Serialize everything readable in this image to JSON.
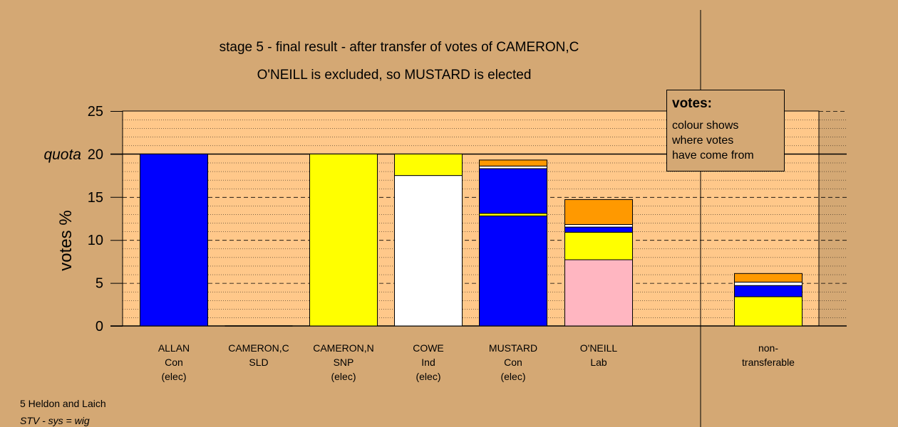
{
  "chart_data": {
    "type": "bar",
    "stacked": true,
    "title": "stage 5 - final result - after transfer of votes of CAMERON,C",
    "subtitle": "O'NEILL is excluded, so MUSTARD is elected",
    "ylabel": "votes %",
    "ylim": [
      0,
      25
    ],
    "yticks": [
      0,
      5,
      10,
      15,
      20,
      25
    ],
    "quota_label": "quota",
    "quota": 20,
    "grid": true,
    "categories": [
      {
        "name": "ALLAN",
        "party": "Con",
        "status": "(elec)"
      },
      {
        "name": "CAMERON,C",
        "party": "SLD",
        "status": ""
      },
      {
        "name": "CAMERON,N",
        "party": "SNP",
        "status": "(elec)"
      },
      {
        "name": "COWE",
        "party": "Ind",
        "status": "(elec)"
      },
      {
        "name": "MUSTARD",
        "party": "Con",
        "status": "(elec)"
      },
      {
        "name": "O'NEILL",
        "party": "Lab",
        "status": ""
      },
      {
        "name": "non-",
        "party": "transferable",
        "status": ""
      }
    ],
    "bars": [
      [
        {
          "color": "#0000ff",
          "value": 20.0
        }
      ],
      [],
      [
        {
          "color": "#ffff00",
          "value": 20.0
        }
      ],
      [
        {
          "color": "#ffffff",
          "value": 17.5
        },
        {
          "color": "#ffff00",
          "value": 2.5
        }
      ],
      [
        {
          "color": "#0000ff",
          "value": 12.8
        },
        {
          "color": "#ffff00",
          "value": 0.3
        },
        {
          "color": "#0000ff",
          "value": 5.2
        },
        {
          "color": "#ffffff",
          "value": 0.3
        },
        {
          "color": "#ff9900",
          "value": 0.7
        }
      ],
      [
        {
          "color": "#ffb6c1",
          "value": 7.7
        },
        {
          "color": "#ffff00",
          "value": 3.2
        },
        {
          "color": "#0000ff",
          "value": 0.6
        },
        {
          "color": "#ffffff",
          "value": 0.3
        },
        {
          "color": "#ff9900",
          "value": 2.9
        }
      ],
      [
        {
          "color": "#ffff00",
          "value": 3.4
        },
        {
          "color": "#0000ff",
          "value": 1.3
        },
        {
          "color": "#ffffff",
          "value": 0.4
        },
        {
          "color": "#ff9900",
          "value": 1.0
        }
      ]
    ],
    "legend": {
      "title": "votes:",
      "lines": [
        "colour shows",
        "where votes",
        "have come from"
      ]
    },
    "colors": {
      "background": "#d4a874",
      "plot_area": "#ffc88a"
    }
  },
  "footer": {
    "line1": "5 Heldon and Laich",
    "line2": "STV - sys = wig"
  }
}
